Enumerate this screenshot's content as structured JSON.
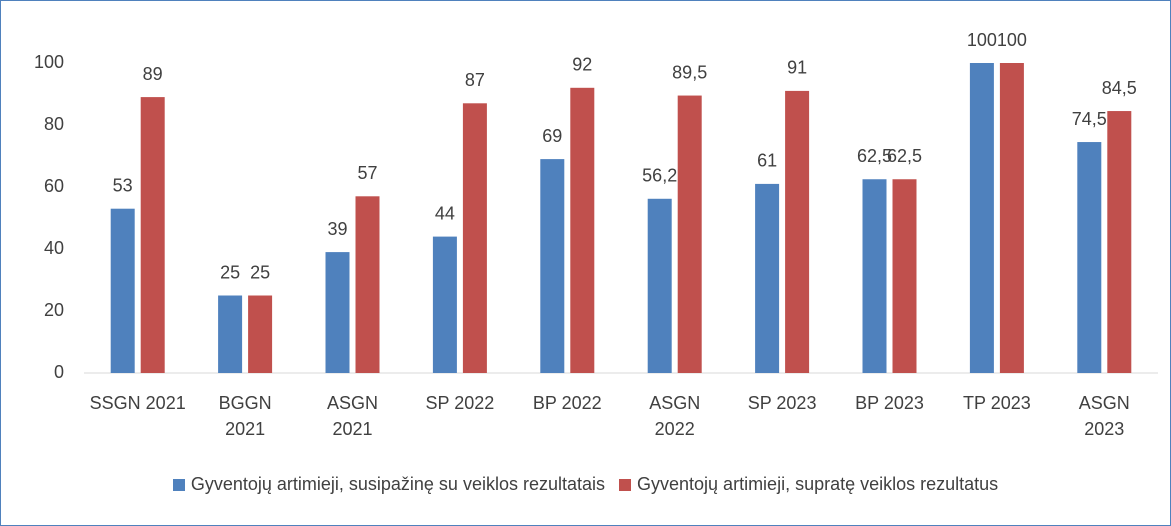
{
  "chart_data": {
    "type": "bar",
    "categories": [
      "SSGN 2021",
      "BGGN\n2021",
      "ASGN\n2021",
      "SP 2022",
      "BP 2022",
      "ASGN\n2022",
      "SP 2023",
      "BP 2023",
      "TP 2023",
      "ASGN\n2023"
    ],
    "series": [
      {
        "name": "Gyventojų artimieji, susipažinę su veiklos rezultatais",
        "color": "#4f81bd",
        "values": [
          53,
          25,
          39,
          44,
          69,
          56.2,
          61,
          62.5,
          100,
          74.5
        ],
        "value_labels": [
          "53",
          "25",
          "39",
          "44",
          "69",
          "56,2",
          "61",
          "62,5",
          "100",
          "74,5"
        ]
      },
      {
        "name": "Gyventojų artimieji, supratę veiklos rezultatus",
        "color": "#c0504d",
        "values": [
          89,
          25,
          57,
          87,
          92,
          89.5,
          91,
          62.5,
          100,
          84.5
        ],
        "value_labels": [
          "89",
          "25",
          "57",
          "87",
          "92",
          "89,5",
          "91",
          "62,5",
          "100",
          "84,5"
        ]
      }
    ],
    "ylim": [
      0,
      100
    ],
    "yticks": [
      0,
      20,
      40,
      60,
      80,
      100
    ],
    "legend": "bottom"
  }
}
